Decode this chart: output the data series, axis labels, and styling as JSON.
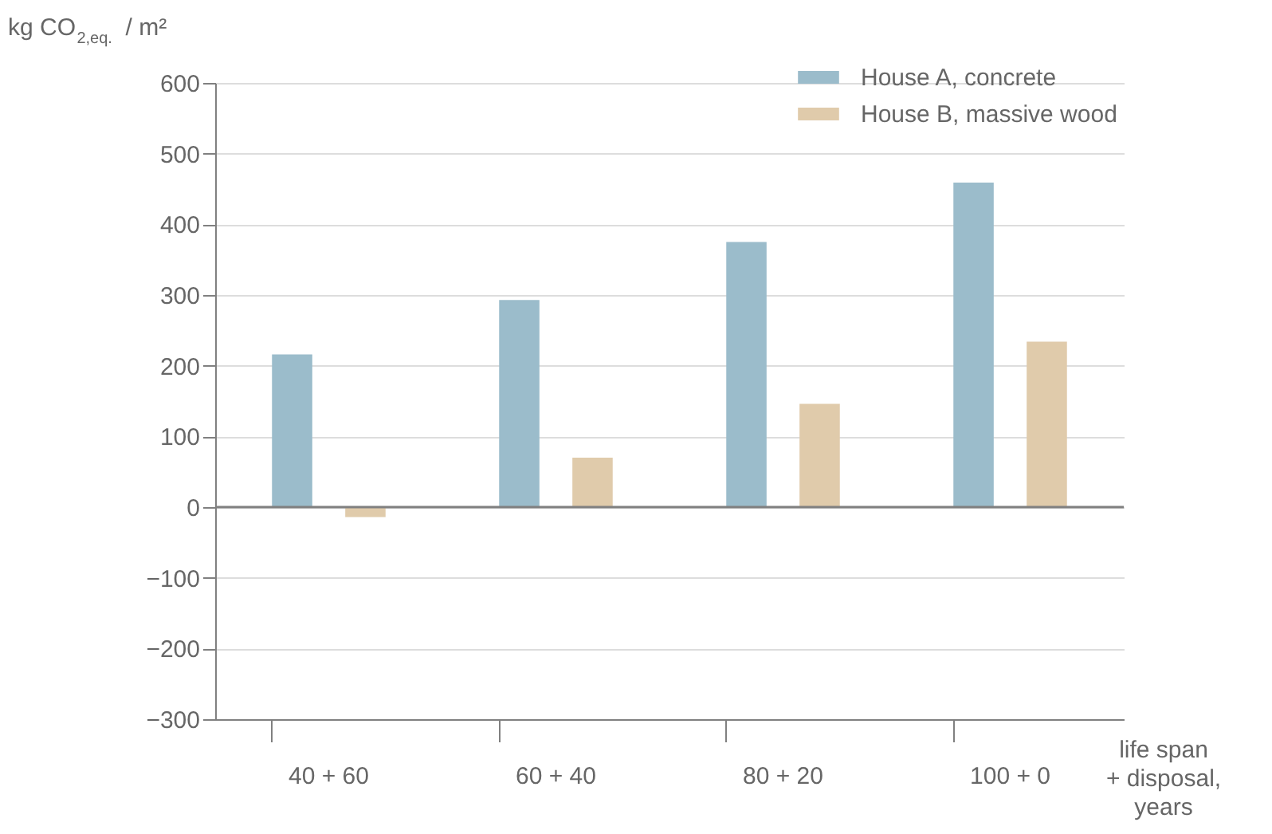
{
  "chart_data": {
    "type": "bar",
    "ylabel": "kg CO$_{2,eq.}$ / m²",
    "xlabel": "life span\n+ disposal,\nyears",
    "categories": [
      "40 + 60",
      "60 + 40",
      "80 + 20",
      "100 + 0"
    ],
    "series": [
      {
        "name": "House A, concrete",
        "color": "#9bbccb",
        "values": [
          216,
          293,
          375,
          459
        ]
      },
      {
        "name": "House B, massive wood",
        "color": "#e0cbab",
        "values": [
          -14,
          70,
          146,
          234
        ]
      }
    ],
    "ylim": [
      -300,
      600
    ],
    "yticks": [
      -300,
      -200,
      -100,
      0,
      100,
      200,
      300,
      400,
      500,
      600
    ],
    "grid": "y",
    "legend": "top right",
    "ref_lines": [
      {
        "axis": "y",
        "value": 0,
        "color": "#808080"
      }
    ]
  }
}
